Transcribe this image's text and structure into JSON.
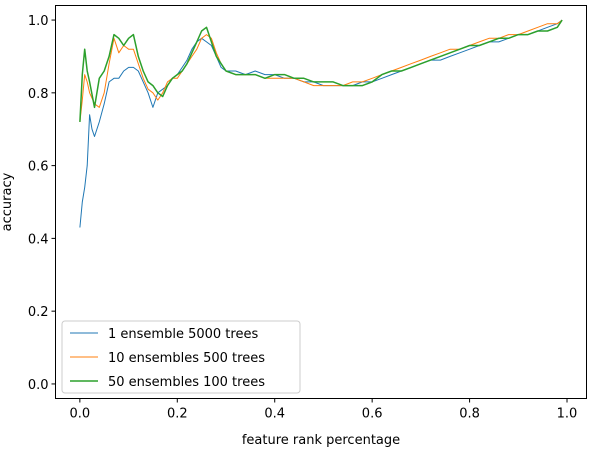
{
  "chart_data": {
    "type": "line",
    "xlabel": "feature rank percentage",
    "ylabel": "accuracy",
    "xlim": [
      -0.05,
      1.04
    ],
    "ylim": [
      -0.04,
      1.04
    ],
    "xticks": [
      0.0,
      0.2,
      0.4,
      0.6,
      0.8,
      1.0
    ],
    "xtick_labels": [
      "0.0",
      "0.2",
      "0.4",
      "0.6",
      "0.8",
      "1.0"
    ],
    "yticks": [
      0.0,
      0.2,
      0.4,
      0.6,
      0.8,
      1.0
    ],
    "ytick_labels": [
      "0.0",
      "0.2",
      "0.4",
      "0.6",
      "0.8",
      "1.0"
    ],
    "grid": false,
    "legend_position": "lower-left",
    "series": [
      {
        "name": "1 ensemble 5000 trees",
        "color": "#1f77b4",
        "line_width": 1,
        "x": [
          0.0,
          0.005,
          0.01,
          0.015,
          0.02,
          0.025,
          0.03,
          0.04,
          0.05,
          0.06,
          0.07,
          0.08,
          0.09,
          0.1,
          0.11,
          0.12,
          0.13,
          0.14,
          0.15,
          0.16,
          0.17,
          0.18,
          0.19,
          0.2,
          0.21,
          0.22,
          0.23,
          0.24,
          0.25,
          0.26,
          0.27,
          0.28,
          0.29,
          0.3,
          0.32,
          0.34,
          0.36,
          0.38,
          0.4,
          0.42,
          0.44,
          0.46,
          0.48,
          0.5,
          0.52,
          0.54,
          0.56,
          0.58,
          0.6,
          0.62,
          0.64,
          0.66,
          0.68,
          0.7,
          0.72,
          0.74,
          0.76,
          0.78,
          0.8,
          0.82,
          0.84,
          0.86,
          0.88,
          0.9,
          0.92,
          0.94,
          0.96,
          0.98,
          0.99
        ],
        "y": [
          0.43,
          0.5,
          0.54,
          0.6,
          0.74,
          0.7,
          0.68,
          0.72,
          0.77,
          0.83,
          0.84,
          0.84,
          0.86,
          0.87,
          0.87,
          0.86,
          0.83,
          0.8,
          0.76,
          0.8,
          0.81,
          0.82,
          0.84,
          0.85,
          0.87,
          0.89,
          0.92,
          0.94,
          0.95,
          0.94,
          0.93,
          0.9,
          0.87,
          0.86,
          0.86,
          0.85,
          0.86,
          0.85,
          0.85,
          0.84,
          0.84,
          0.83,
          0.83,
          0.82,
          0.82,
          0.82,
          0.82,
          0.83,
          0.83,
          0.84,
          0.85,
          0.86,
          0.87,
          0.88,
          0.89,
          0.89,
          0.9,
          0.91,
          0.92,
          0.93,
          0.94,
          0.94,
          0.95,
          0.96,
          0.96,
          0.97,
          0.98,
          0.99,
          1.0
        ]
      },
      {
        "name": "10 ensembles 500 trees",
        "color": "#ff7f0e",
        "line_width": 1,
        "x": [
          0.0,
          0.005,
          0.01,
          0.015,
          0.02,
          0.03,
          0.04,
          0.05,
          0.06,
          0.07,
          0.08,
          0.09,
          0.1,
          0.11,
          0.12,
          0.13,
          0.14,
          0.15,
          0.16,
          0.17,
          0.18,
          0.19,
          0.2,
          0.21,
          0.22,
          0.23,
          0.24,
          0.25,
          0.26,
          0.27,
          0.28,
          0.29,
          0.3,
          0.32,
          0.34,
          0.36,
          0.38,
          0.4,
          0.42,
          0.44,
          0.46,
          0.48,
          0.5,
          0.52,
          0.54,
          0.56,
          0.58,
          0.6,
          0.62,
          0.64,
          0.66,
          0.68,
          0.7,
          0.72,
          0.74,
          0.76,
          0.78,
          0.8,
          0.82,
          0.84,
          0.86,
          0.88,
          0.9,
          0.92,
          0.94,
          0.96,
          0.98,
          0.99
        ],
        "y": [
          0.72,
          0.78,
          0.85,
          0.83,
          0.8,
          0.77,
          0.76,
          0.8,
          0.88,
          0.95,
          0.91,
          0.93,
          0.92,
          0.92,
          0.88,
          0.84,
          0.81,
          0.8,
          0.78,
          0.8,
          0.83,
          0.84,
          0.84,
          0.86,
          0.88,
          0.9,
          0.92,
          0.95,
          0.96,
          0.95,
          0.91,
          0.88,
          0.86,
          0.85,
          0.85,
          0.85,
          0.84,
          0.84,
          0.84,
          0.84,
          0.83,
          0.82,
          0.82,
          0.82,
          0.82,
          0.83,
          0.83,
          0.84,
          0.85,
          0.86,
          0.87,
          0.88,
          0.89,
          0.9,
          0.91,
          0.92,
          0.92,
          0.93,
          0.94,
          0.95,
          0.95,
          0.96,
          0.96,
          0.97,
          0.98,
          0.99,
          0.99,
          1.0
        ]
      },
      {
        "name": "50 ensembles 100 trees",
        "color": "#2ca02c",
        "line_width": 1.5,
        "x": [
          0.0,
          0.005,
          0.01,
          0.015,
          0.02,
          0.03,
          0.04,
          0.05,
          0.06,
          0.07,
          0.08,
          0.09,
          0.1,
          0.11,
          0.12,
          0.13,
          0.14,
          0.15,
          0.16,
          0.17,
          0.18,
          0.19,
          0.2,
          0.21,
          0.22,
          0.23,
          0.24,
          0.25,
          0.26,
          0.27,
          0.28,
          0.29,
          0.3,
          0.32,
          0.34,
          0.36,
          0.38,
          0.4,
          0.42,
          0.44,
          0.46,
          0.48,
          0.5,
          0.52,
          0.54,
          0.56,
          0.58,
          0.6,
          0.62,
          0.64,
          0.66,
          0.68,
          0.7,
          0.72,
          0.74,
          0.76,
          0.78,
          0.8,
          0.82,
          0.84,
          0.86,
          0.88,
          0.9,
          0.92,
          0.94,
          0.96,
          0.98,
          0.99
        ],
        "y": [
          0.72,
          0.85,
          0.92,
          0.86,
          0.83,
          0.76,
          0.84,
          0.86,
          0.9,
          0.96,
          0.95,
          0.93,
          0.95,
          0.96,
          0.9,
          0.86,
          0.83,
          0.82,
          0.8,
          0.79,
          0.82,
          0.84,
          0.85,
          0.86,
          0.88,
          0.91,
          0.94,
          0.97,
          0.98,
          0.94,
          0.9,
          0.88,
          0.86,
          0.85,
          0.85,
          0.85,
          0.84,
          0.85,
          0.85,
          0.84,
          0.84,
          0.83,
          0.83,
          0.83,
          0.82,
          0.82,
          0.82,
          0.83,
          0.85,
          0.86,
          0.86,
          0.87,
          0.88,
          0.89,
          0.9,
          0.91,
          0.92,
          0.93,
          0.93,
          0.94,
          0.95,
          0.95,
          0.96,
          0.96,
          0.97,
          0.97,
          0.98,
          1.0
        ]
      }
    ]
  }
}
